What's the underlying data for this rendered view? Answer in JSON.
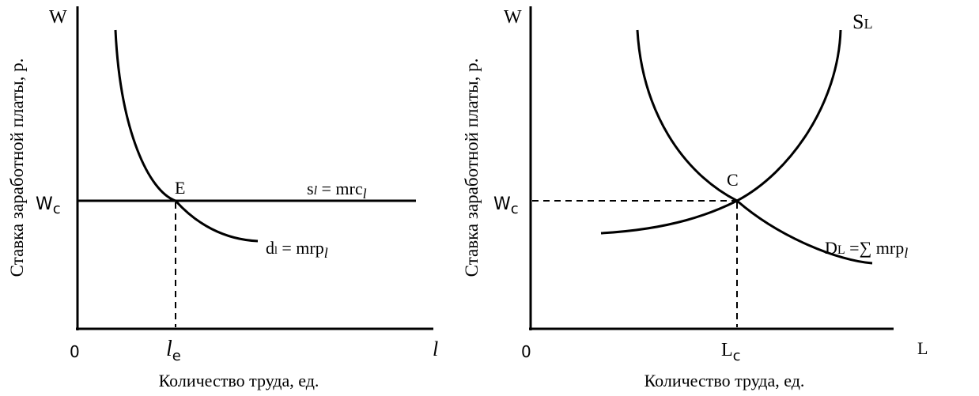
{
  "left_panel": {
    "axis_y_letter": "W",
    "axis_x_letter": "l",
    "origin": "0",
    "ylabel": "Ставка заработной платы, р.",
    "xlabel": "Количество труда, ед.",
    "wc_label": "W",
    "wc_sub": "c",
    "le_main": "l",
    "le_sub": "e",
    "point_label": "E",
    "supply_label": "s",
    "supply_l": "l",
    "supply_eq": " = mrc",
    "supply_sub": "l",
    "demand_label": "d",
    "demand_l": "l",
    "demand_eq": " = mrp",
    "demand_sub": "l"
  },
  "right_panel": {
    "axis_y_letter": "W",
    "axis_x_letter": "L",
    "origin": "0",
    "ylabel": "Ставка заработной платы, р.",
    "xlabel": "Количество труда, ед.",
    "wc_label": "W",
    "wc_sub": "c",
    "lc_main": "L",
    "lc_sub": "c",
    "point_label": "C",
    "supply_label": "S",
    "supply_sub": "L",
    "demand_label": "D",
    "demand_sub": "L",
    "demand_eq": " =∑ mrp",
    "demand_eq_sub": "l"
  }
}
